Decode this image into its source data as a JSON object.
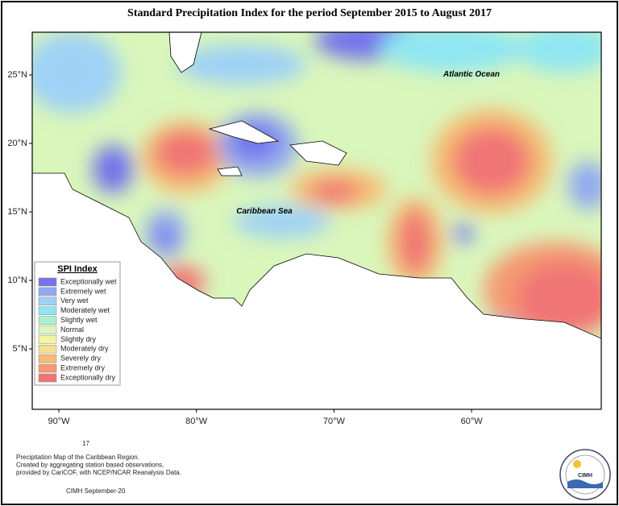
{
  "title": "Standard Precipitation Index for the period September 2015 to August 2017",
  "map": {
    "labels": [
      "Atlantic Ocean",
      "Caribbean Sea"
    ],
    "lat_labels": [
      "25°N",
      "20°N",
      "15°N",
      "10°N",
      "5°N"
    ],
    "lon_labels": [
      "90°W",
      "80°W",
      "70°W",
      "60°W"
    ]
  },
  "legend": {
    "title": "SPI Index",
    "items": [
      {
        "label": "Exceptionally wet",
        "color": "#7373ea"
      },
      {
        "label": "Extremely wet",
        "color": "#92a9f0"
      },
      {
        "label": "Very wet",
        "color": "#9fd1f6"
      },
      {
        "label": "Moderately wet",
        "color": "#8fe6f2"
      },
      {
        "label": "Slightly wet",
        "color": "#aaf0cc"
      },
      {
        "label": "Normal",
        "color": "#d9f6bb"
      },
      {
        "label": "Slightly dry",
        "color": "#f4f4a2"
      },
      {
        "label": "Moderately dry",
        "color": "#f6df8c"
      },
      {
        "label": "Severely dry",
        "color": "#f6ba72"
      },
      {
        "label": "Extremely dry",
        "color": "#f59a72"
      },
      {
        "label": "Exceptionally dry",
        "color": "#f07474"
      }
    ]
  },
  "footer": {
    "page_number": "17",
    "lines": [
      "Precipitation Map of the Caribbean Region.",
      "Created by aggregating station based observations,",
      "provided by CariCOF, with NCEP/NCAR Reanalysis Data."
    ],
    "date": "CIMH September-20"
  },
  "logo": {
    "text": "CIMH"
  }
}
